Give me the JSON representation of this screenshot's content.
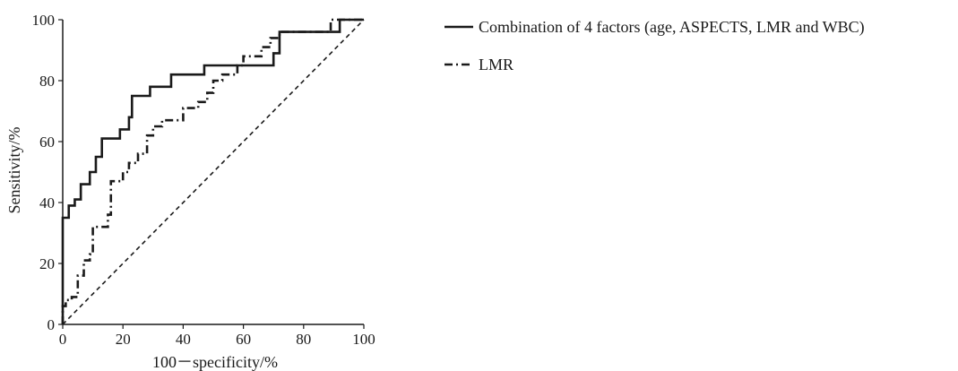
{
  "chart_data": {
    "type": "line",
    "title": "",
    "xlabel": "100－specificity/%",
    "ylabel": "Sensitivity/%",
    "xlim": [
      0,
      100
    ],
    "ylim": [
      0,
      100
    ],
    "x_ticks": [
      "0",
      "20",
      "40",
      "60",
      "80",
      "100"
    ],
    "y_ticks": [
      "0",
      "20",
      "40",
      "60",
      "80",
      "100"
    ],
    "grid": false,
    "legend_position": "top-right",
    "series": [
      {
        "name": "Combination of 4 factors (age, ASPECTS, LMR and WBC)",
        "style": "solid",
        "color": "#1a1a1a",
        "points": [
          [
            0,
            0
          ],
          [
            0,
            35
          ],
          [
            2,
            35
          ],
          [
            2,
            39
          ],
          [
            4,
            39
          ],
          [
            4,
            41
          ],
          [
            6,
            41
          ],
          [
            6,
            46
          ],
          [
            9,
            46
          ],
          [
            9,
            50
          ],
          [
            11,
            50
          ],
          [
            11,
            55
          ],
          [
            13,
            55
          ],
          [
            13,
            61
          ],
          [
            19,
            61
          ],
          [
            19,
            64
          ],
          [
            22,
            64
          ],
          [
            22,
            68
          ],
          [
            23,
            68
          ],
          [
            23,
            75
          ],
          [
            29,
            75
          ],
          [
            29,
            78
          ],
          [
            36,
            78
          ],
          [
            36,
            82
          ],
          [
            47,
            82
          ],
          [
            47,
            85
          ],
          [
            70,
            85
          ],
          [
            70,
            89
          ],
          [
            72,
            89
          ],
          [
            72,
            96
          ],
          [
            92,
            96
          ],
          [
            92,
            100
          ],
          [
            100,
            100
          ]
        ]
      },
      {
        "name": "LMR",
        "style": "dashdot",
        "color": "#1a1a1a",
        "points": [
          [
            0,
            0
          ],
          [
            0,
            6
          ],
          [
            1,
            6
          ],
          [
            1,
            8
          ],
          [
            3,
            8
          ],
          [
            3,
            9
          ],
          [
            5,
            9
          ],
          [
            5,
            16
          ],
          [
            7,
            16
          ],
          [
            7,
            21
          ],
          [
            9,
            21
          ],
          [
            9,
            23
          ],
          [
            10,
            23
          ],
          [
            10,
            32
          ],
          [
            15,
            32
          ],
          [
            15,
            36
          ],
          [
            16,
            36
          ],
          [
            16,
            47
          ],
          [
            20,
            47
          ],
          [
            20,
            50
          ],
          [
            22,
            50
          ],
          [
            22,
            53
          ],
          [
            25,
            53
          ],
          [
            25,
            56
          ],
          [
            28,
            56
          ],
          [
            28,
            62
          ],
          [
            30,
            62
          ],
          [
            30,
            65
          ],
          [
            33,
            65
          ],
          [
            33,
            67
          ],
          [
            40,
            67
          ],
          [
            40,
            71
          ],
          [
            45,
            71
          ],
          [
            45,
            73
          ],
          [
            48,
            73
          ],
          [
            48,
            76
          ],
          [
            50,
            76
          ],
          [
            50,
            80
          ],
          [
            53,
            80
          ],
          [
            53,
            82
          ],
          [
            58,
            82
          ],
          [
            58,
            85
          ],
          [
            60,
            85
          ],
          [
            60,
            88
          ],
          [
            66,
            88
          ],
          [
            66,
            91
          ],
          [
            69,
            91
          ],
          [
            69,
            94
          ],
          [
            72,
            94
          ],
          [
            72,
            96
          ],
          [
            89,
            96
          ],
          [
            89,
            100
          ],
          [
            100,
            100
          ]
        ]
      },
      {
        "name": "",
        "style": "dashed",
        "color": "#1a1a1a",
        "points": [
          [
            0,
            0
          ],
          [
            100,
            100
          ]
        ]
      }
    ]
  }
}
